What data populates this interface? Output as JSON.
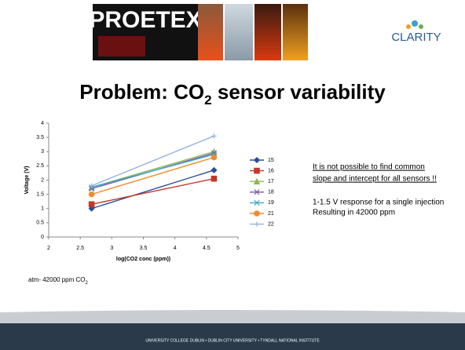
{
  "header": {
    "logo_left": "PROETEX",
    "logo_right": "CLARITY"
  },
  "title": [
    "Problem: CO",
    "2",
    " sensor variability"
  ],
  "chart_data": {
    "type": "line",
    "x": [
      2.68,
      4.62
    ],
    "xlim": [
      2,
      5
    ],
    "xticks": [
      2,
      2.5,
      3,
      3.5,
      4,
      4.5,
      5
    ],
    "ylim": [
      0,
      4
    ],
    "yticks": [
      0,
      0.5,
      1,
      1.5,
      2,
      2.5,
      3,
      3.5,
      4
    ],
    "x_label": "log(CO2 conc (ppm))",
    "y_label": "Voltage (V)",
    "legend": "right",
    "series": [
      {
        "name": "15",
        "color": "#2a4d9a",
        "marker": "diamond",
        "values": [
          1.0,
          2.35
        ]
      },
      {
        "name": "16",
        "color": "#c0392b",
        "marker": "square",
        "values": [
          1.15,
          2.05
        ]
      },
      {
        "name": "17",
        "color": "#8fb84e",
        "marker": "triangle",
        "values": [
          1.75,
          3.0
        ]
      },
      {
        "name": "18",
        "color": "#7b5aa6",
        "marker": "x",
        "values": [
          1.7,
          2.95
        ]
      },
      {
        "name": "19",
        "color": "#3ba9c9",
        "marker": "x",
        "values": [
          1.75,
          2.9
        ]
      },
      {
        "name": "21",
        "color": "#f28a2e",
        "marker": "circle",
        "values": [
          1.5,
          2.8
        ]
      },
      {
        "name": "22",
        "color": "#94b2dc",
        "marker": "plus",
        "values": [
          1.8,
          3.55
        ]
      }
    ]
  },
  "notes": {
    "statement": [
      "It is not possible to find common",
      "slope and intercept for all sensors !!"
    ],
    "response": [
      "1-1.5 V response for a single injection",
      "Resulting in 42000 ppm"
    ],
    "atm": [
      "atm- 42000 ppm CO",
      "2"
    ]
  },
  "footer": "UNIVERSITY COLLEGE DUBLIN  •  DUBLIN CITY UNIVERSITY  •  TYNDALL NATIONAL INSTITUTE"
}
